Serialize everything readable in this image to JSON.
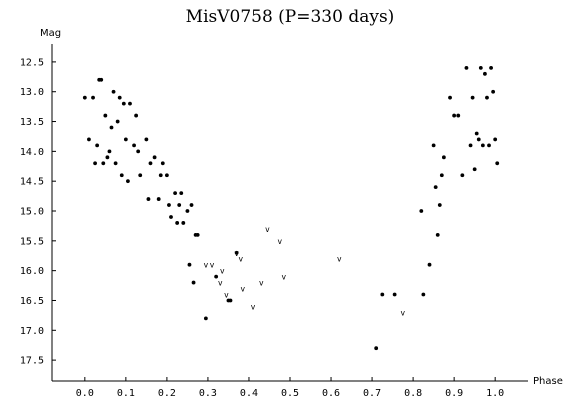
{
  "chart_data": {
    "type": "scatter",
    "title": "MisV0758 (P=330 days)",
    "xlabel": "Phase",
    "ylabel": "Mag",
    "xlim": [
      -0.08,
      1.08
    ],
    "ylim": [
      17.85,
      12.2
    ],
    "y_inverted": true,
    "x_ticks": [
      "0.0",
      "0.1",
      "0.2",
      "0.3",
      "0.4",
      "0.5",
      "0.6",
      "0.7",
      "0.8",
      "0.9",
      "1.0"
    ],
    "y_ticks": [
      "12.5",
      "13.0",
      "13.5",
      "14.0",
      "14.5",
      "15.0",
      "15.5",
      "16.0",
      "16.5",
      "17.0",
      "17.5"
    ],
    "grid": false,
    "series": [
      {
        "marker": "dot",
        "points": [
          [
            0.0,
            13.1
          ],
          [
            0.01,
            13.8
          ],
          [
            0.02,
            13.1
          ],
          [
            0.025,
            14.2
          ],
          [
            0.03,
            13.9
          ],
          [
            0.035,
            12.8
          ],
          [
            0.04,
            12.8
          ],
          [
            0.045,
            14.2
          ],
          [
            0.05,
            13.4
          ],
          [
            0.055,
            14.1
          ],
          [
            0.06,
            14.0
          ],
          [
            0.065,
            13.6
          ],
          [
            0.07,
            13.0
          ],
          [
            0.075,
            14.2
          ],
          [
            0.08,
            13.5
          ],
          [
            0.085,
            13.1
          ],
          [
            0.09,
            14.4
          ],
          [
            0.095,
            13.2
          ],
          [
            0.1,
            13.8
          ],
          [
            0.105,
            14.5
          ],
          [
            0.11,
            13.2
          ],
          [
            0.12,
            13.9
          ],
          [
            0.125,
            13.4
          ],
          [
            0.13,
            14.0
          ],
          [
            0.135,
            14.4
          ],
          [
            0.15,
            13.8
          ],
          [
            0.155,
            14.8
          ],
          [
            0.16,
            14.2
          ],
          [
            0.17,
            14.1
          ],
          [
            0.18,
            14.8
          ],
          [
            0.185,
            14.4
          ],
          [
            0.19,
            14.2
          ],
          [
            0.2,
            14.4
          ],
          [
            0.205,
            14.9
          ],
          [
            0.21,
            15.1
          ],
          [
            0.22,
            14.7
          ],
          [
            0.225,
            15.2
          ],
          [
            0.23,
            14.9
          ],
          [
            0.235,
            14.7
          ],
          [
            0.24,
            15.2
          ],
          [
            0.25,
            15.0
          ],
          [
            0.255,
            15.9
          ],
          [
            0.26,
            14.9
          ],
          [
            0.265,
            16.2
          ],
          [
            0.27,
            15.4
          ],
          [
            0.275,
            15.4
          ],
          [
            0.295,
            16.8
          ],
          [
            0.32,
            16.1
          ],
          [
            0.35,
            16.5
          ],
          [
            0.355,
            16.5
          ],
          [
            0.37,
            15.7
          ],
          [
            0.71,
            17.3
          ],
          [
            0.725,
            16.4
          ],
          [
            0.755,
            16.4
          ],
          [
            0.82,
            15.0
          ],
          [
            0.825,
            16.4
          ],
          [
            0.84,
            15.9
          ],
          [
            0.85,
            13.9
          ],
          [
            0.855,
            14.6
          ],
          [
            0.86,
            15.4
          ],
          [
            0.865,
            14.9
          ],
          [
            0.87,
            14.4
          ],
          [
            0.875,
            14.1
          ],
          [
            0.89,
            13.1
          ],
          [
            0.9,
            13.4
          ],
          [
            0.91,
            13.4
          ],
          [
            0.92,
            14.4
          ],
          [
            0.93,
            12.6
          ],
          [
            0.94,
            13.9
          ],
          [
            0.945,
            13.1
          ],
          [
            0.95,
            14.3
          ],
          [
            0.955,
            13.7
          ],
          [
            0.96,
            13.8
          ],
          [
            0.965,
            12.6
          ],
          [
            0.97,
            13.9
          ],
          [
            0.975,
            12.7
          ],
          [
            0.98,
            13.1
          ],
          [
            0.985,
            13.9
          ],
          [
            0.99,
            12.6
          ],
          [
            0.995,
            13.0
          ],
          [
            1.0,
            13.8
          ],
          [
            1.005,
            14.2
          ]
        ]
      },
      {
        "marker": "v",
        "points": [
          [
            0.295,
            15.9
          ],
          [
            0.31,
            15.9
          ],
          [
            0.33,
            16.2
          ],
          [
            0.335,
            16.0
          ],
          [
            0.345,
            16.4
          ],
          [
            0.37,
            15.7
          ],
          [
            0.38,
            15.8
          ],
          [
            0.385,
            16.3
          ],
          [
            0.41,
            16.6
          ],
          [
            0.43,
            16.2
          ],
          [
            0.445,
            15.3
          ],
          [
            0.475,
            15.5
          ],
          [
            0.485,
            16.1
          ],
          [
            0.62,
            15.8
          ],
          [
            0.775,
            16.7
          ]
        ]
      }
    ]
  }
}
